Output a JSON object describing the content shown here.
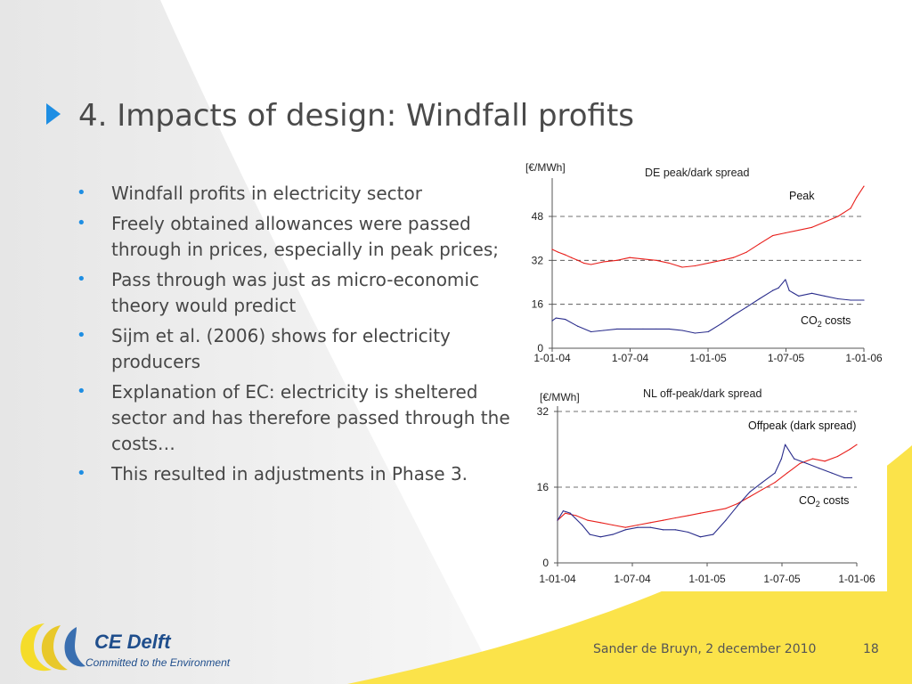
{
  "slide": {
    "title": "4. Impacts of design: Windfall profits",
    "bullets": [
      "Windfall profits in electricity sector",
      "Freely obtained allowances were passed through in prices, especially in peak prices;",
      "Pass through was just as micro-economic theory would predict",
      "Sijm et al. (2006) shows for electricity producers",
      "Explanation of EC: electricity is sheltered sector and has therefore passed through the costs…",
      "This resulted in adjustments in Phase 3."
    ],
    "footer": {
      "author_date": "Sander de Bruyn, 2 december 2010",
      "page_number": "18"
    },
    "logo": {
      "name": "CE Delft",
      "tagline": "Committed to the Environment"
    }
  },
  "colors": {
    "accent": "#1e8ee3",
    "peak_red": "#e8201c",
    "co2_blue": "#2a2d8c",
    "logo_yellow": "#f5dc2a",
    "logo_blue": "#3a6fb0",
    "background_yellow": "#fbe34a"
  },
  "chart_data": [
    {
      "type": "line",
      "title": "DE peak/dark spread",
      "ylabel": "[€/MWh]",
      "x_ticks": [
        "1-01-04",
        "1-07-04",
        "1-01-05",
        "1-07-05",
        "1-01-06"
      ],
      "xlim": [
        "2004-01-01",
        "2006-01-01"
      ],
      "ylim": [
        0,
        60
      ],
      "y_ticks": [
        0,
        16,
        32,
        48
      ],
      "dashed_gridlines": [
        16,
        32,
        48
      ],
      "series": [
        {
          "name": "Peak",
          "color": "#e8201c",
          "x": [
            "2004-01-01",
            "2004-01-15",
            "2004-02-01",
            "2004-02-15",
            "2004-03-01",
            "2004-03-15",
            "2004-04-01",
            "2004-05-01",
            "2004-06-01",
            "2004-07-01",
            "2004-08-01",
            "2004-09-01",
            "2004-10-01",
            "2004-11-01",
            "2004-12-01",
            "2005-01-01",
            "2005-02-01",
            "2005-03-01",
            "2005-04-01",
            "2005-05-01",
            "2005-06-01",
            "2005-07-01",
            "2005-08-01",
            "2005-09-01",
            "2005-10-01",
            "2005-11-01",
            "2005-12-01",
            "2005-12-15",
            "2006-01-01"
          ],
          "values": [
            36,
            35,
            34,
            33,
            32,
            31,
            30.5,
            31.5,
            32,
            33,
            32.5,
            32,
            31,
            29.5,
            30,
            31,
            32,
            33,
            35,
            38,
            41,
            42,
            43,
            44,
            46,
            48,
            51,
            55,
            59
          ]
        },
        {
          "name": "CO₂ costs",
          "color": "#2a2d8c",
          "x": [
            "2004-01-01",
            "2004-01-10",
            "2004-02-01",
            "2004-03-01",
            "2004-04-01",
            "2004-05-01",
            "2004-06-01",
            "2004-07-01",
            "2004-08-01",
            "2004-09-01",
            "2004-10-01",
            "2004-11-01",
            "2004-12-01",
            "2005-01-01",
            "2005-02-01",
            "2005-03-01",
            "2005-04-01",
            "2005-05-01",
            "2005-06-01",
            "2005-06-15",
            "2005-07-01",
            "2005-07-10",
            "2005-08-01",
            "2005-09-01",
            "2005-10-01",
            "2005-11-01",
            "2005-12-01",
            "2006-01-01"
          ],
          "values": [
            10,
            11,
            10.5,
            8,
            6,
            6.5,
            7,
            7,
            7,
            7,
            7,
            6.5,
            5.5,
            6,
            9,
            12,
            15,
            18,
            21,
            22,
            25,
            21,
            19,
            20,
            19,
            18,
            17.5,
            17.5
          ]
        }
      ]
    },
    {
      "type": "line",
      "title": "NL off-peak/dark spread",
      "ylabel": "[€/MWh]",
      "x_ticks": [
        "1-01-04",
        "1-07-04",
        "1-01-05",
        "1-07-05",
        "1-01-06"
      ],
      "xlim": [
        "2004-01-01",
        "2006-01-01"
      ],
      "ylim": [
        0,
        32
      ],
      "y_ticks": [
        0,
        16,
        32
      ],
      "dashed_gridlines": [
        16,
        32
      ],
      "series": [
        {
          "name": "Offpeak (dark spread)",
          "color": "#e8201c",
          "x": [
            "2004-01-01",
            "2004-01-20",
            "2004-02-15",
            "2004-03-15",
            "2004-04-15",
            "2004-05-15",
            "2004-06-15",
            "2004-07-15",
            "2004-08-15",
            "2004-09-15",
            "2004-10-15",
            "2004-11-15",
            "2004-12-15",
            "2005-01-15",
            "2005-02-15",
            "2005-03-15",
            "2005-04-15",
            "2005-05-15",
            "2005-06-15",
            "2005-07-15",
            "2005-08-15",
            "2005-09-15",
            "2005-10-15",
            "2005-11-15",
            "2005-12-15",
            "2006-01-01"
          ],
          "values": [
            9,
            10.5,
            10,
            9,
            8.5,
            8,
            7.5,
            8,
            8.5,
            9,
            9.5,
            10,
            10.5,
            11,
            11.5,
            12.5,
            14,
            15.5,
            17,
            19,
            21,
            22,
            21.5,
            22.5,
            24,
            25
          ]
        },
        {
          "name": "CO₂ costs",
          "color": "#2a2d8c",
          "x": [
            "2004-01-01",
            "2004-01-15",
            "2004-02-01",
            "2004-03-01",
            "2004-03-20",
            "2004-04-15",
            "2004-05-15",
            "2004-06-15",
            "2004-07-15",
            "2004-08-15",
            "2004-09-15",
            "2004-10-15",
            "2004-11-15",
            "2004-12-15",
            "2005-01-15",
            "2005-02-15",
            "2005-03-15",
            "2005-04-15",
            "2005-05-15",
            "2005-06-15",
            "2005-07-01",
            "2005-07-10",
            "2005-08-01",
            "2005-09-01",
            "2005-10-01",
            "2005-11-01",
            "2005-12-01",
            "2005-12-20"
          ],
          "values": [
            9,
            11,
            10.5,
            8,
            6,
            5.5,
            6,
            7,
            7.5,
            7.5,
            7,
            7,
            6.5,
            5.5,
            6,
            9,
            12,
            15,
            17,
            19,
            22,
            25,
            22,
            21,
            20,
            19,
            18,
            18
          ]
        }
      ]
    }
  ]
}
